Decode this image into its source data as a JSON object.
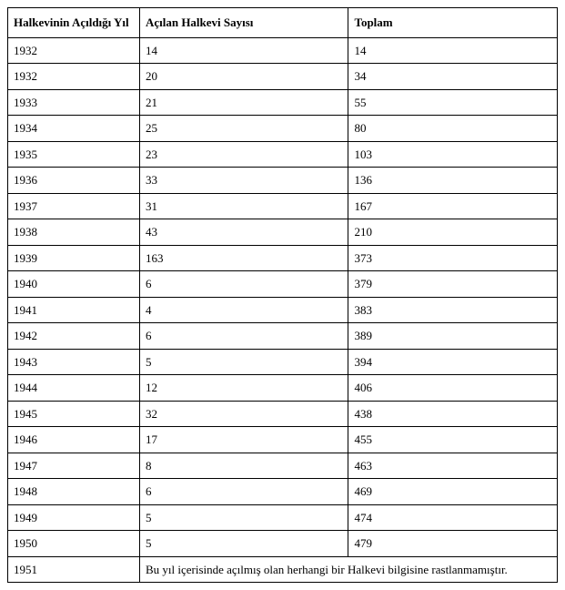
{
  "table": {
    "type": "table",
    "background_color": "#ffffff",
    "border_color": "#000000",
    "font_family": "Times New Roman",
    "header_fontsize": 13,
    "body_fontsize": 13,
    "header_font_weight": "bold",
    "columns": [
      "Halkevinin Açıldığı Yıl",
      "Açılan Halkevi Sayısı",
      "Toplam"
    ],
    "column_widths_pct": [
      24,
      38,
      38
    ],
    "rows": [
      [
        "1932",
        "14",
        "14"
      ],
      [
        "1932",
        "20",
        "34"
      ],
      [
        "1933",
        "21",
        "55"
      ],
      [
        "1934",
        "25",
        "80"
      ],
      [
        "1935",
        "23",
        "103"
      ],
      [
        "1936",
        "33",
        "136"
      ],
      [
        "1937",
        "31",
        "167"
      ],
      [
        "1938",
        "43",
        "210"
      ],
      [
        "1939",
        "163",
        "373"
      ],
      [
        "1940",
        "6",
        "379"
      ],
      [
        "1941",
        "4",
        "383"
      ],
      [
        "1942",
        "6",
        "389"
      ],
      [
        "1943",
        "5",
        "394"
      ],
      [
        "1944",
        "12",
        "406"
      ],
      [
        "1945",
        "32",
        "438"
      ],
      [
        "1946",
        "17",
        "455"
      ],
      [
        "1947",
        "8",
        "463"
      ],
      [
        "1948",
        "6",
        "469"
      ],
      [
        "1949",
        "5",
        "474"
      ],
      [
        "1950",
        "5",
        "479"
      ]
    ],
    "footer_row": {
      "year": "1951",
      "note": "Bu yıl içerisinde açılmış olan herhangi bir Halkevi bilgisine rastlanmamıştır."
    }
  }
}
